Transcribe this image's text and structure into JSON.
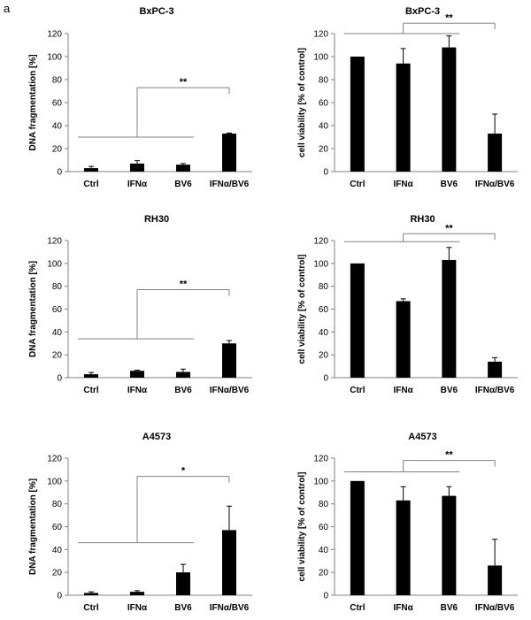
{
  "figure": {
    "panel_label": "a"
  },
  "chart_data": [
    {
      "type": "bar",
      "title": "BxPC-3",
      "ylabel": "DNA fragmentation [%]",
      "ylim": [
        0,
        120
      ],
      "yticks": [
        "0",
        "20",
        "40",
        "60",
        "80",
        "100",
        "120"
      ],
      "categories": [
        "Ctrl",
        "IFNα",
        "BV6",
        "IFNα/BV6"
      ],
      "values": [
        3,
        7,
        6,
        33
      ],
      "errors": [
        1.5,
        2.5,
        1,
        0.5
      ],
      "significance": {
        "label": "**",
        "group": [
          0,
          2
        ],
        "target": 3,
        "group_y": 30,
        "bracket_y": 73
      }
    },
    {
      "type": "bar",
      "title": "BxPC-3",
      "ylabel": "cell viability [% of control]",
      "ylim": [
        0,
        120
      ],
      "yticks": [
        "0",
        "20",
        "40",
        "60",
        "80",
        "100",
        "120"
      ],
      "categories": [
        "Ctrl",
        "IFNα",
        "BV6",
        "IFNα/BV6"
      ],
      "values": [
        100,
        94,
        108,
        33
      ],
      "errors": [
        0,
        13,
        10,
        17
      ],
      "significance": {
        "label": "**",
        "group": [
          0,
          2
        ],
        "target": 3,
        "group_y": 120,
        "bracket_y": 129
      }
    },
    {
      "type": "bar",
      "title": "RH30",
      "ylabel": "DNA fragmentation [%]",
      "ylim": [
        0,
        120
      ],
      "yticks": [
        "0",
        "20",
        "40",
        "60",
        "80",
        "100",
        "120"
      ],
      "categories": [
        "Ctrl",
        "IFNα",
        "BV6",
        "IFNα/BV6"
      ],
      "values": [
        3,
        6,
        5,
        30
      ],
      "errors": [
        1.5,
        0.5,
        2.5,
        2.5
      ],
      "significance": {
        "label": "**",
        "group": [
          0,
          2
        ],
        "target": 3,
        "group_y": 34,
        "bracket_y": 77
      }
    },
    {
      "type": "bar",
      "title": "RH30",
      "ylabel": "cell viability [% of control]",
      "ylim": [
        0,
        120
      ],
      "yticks": [
        "0",
        "20",
        "40",
        "60",
        "80",
        "100",
        "120"
      ],
      "categories": [
        "Ctrl",
        "IFNα",
        "BV6",
        "IFNα/BV6"
      ],
      "values": [
        100,
        67,
        103,
        14
      ],
      "errors": [
        0,
        2,
        11,
        3.5
      ],
      "significance": {
        "label": "**",
        "group": [
          0,
          2
        ],
        "target": 3,
        "group_y": 119,
        "bracket_y": 126
      }
    },
    {
      "type": "bar",
      "title": "A4573",
      "ylabel": "DNA fragmentation [%]",
      "ylim": [
        0,
        120
      ],
      "yticks": [
        "0",
        "20",
        "40",
        "60",
        "80",
        "100",
        "120"
      ],
      "categories": [
        "Ctrl",
        "IFNα",
        "BV6",
        "IFNα/BV6"
      ],
      "values": [
        2,
        3,
        20,
        57
      ],
      "errors": [
        1,
        1,
        7,
        21
      ],
      "significance": {
        "label": "*",
        "group": [
          0,
          2
        ],
        "target": 3,
        "group_y": 46,
        "bracket_y": 104
      }
    },
    {
      "type": "bar",
      "title": "A4573",
      "ylabel": "cell viability [% of control]",
      "ylim": [
        0,
        120
      ],
      "yticks": [
        "0",
        "20",
        "40",
        "60",
        "80",
        "100",
        "120"
      ],
      "categories": [
        "Ctrl",
        "IFNα",
        "BV6",
        "IFNα/BV6"
      ],
      "values": [
        100,
        83,
        87,
        26
      ],
      "errors": [
        0,
        12,
        8,
        23
      ],
      "significance": {
        "label": "**",
        "group": [
          0,
          2
        ],
        "target": 3,
        "group_y": 108,
        "bracket_y": 118
      }
    }
  ]
}
